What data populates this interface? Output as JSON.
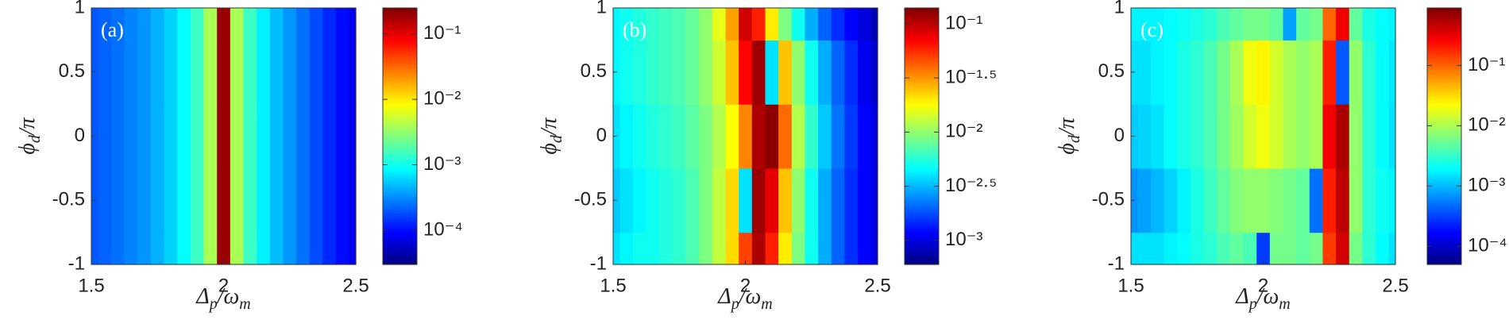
{
  "chart_data": [
    {
      "type": "heatmap",
      "panel_label": "(a)",
      "xlabel": [
        "Δ",
        "p",
        "/ω",
        "m"
      ],
      "ylabel": [
        "ϕ",
        "d",
        "/π"
      ],
      "x": [
        1.5,
        1.55,
        1.6,
        1.65,
        1.7,
        1.75,
        1.8,
        1.85,
        1.9,
        1.95,
        2,
        2.05,
        2.1,
        2.15,
        2.2,
        2.25,
        2.3,
        2.35,
        2.4,
        2.45,
        2.5
      ],
      "y": [
        -1,
        -0.5,
        0,
        0.5,
        1
      ],
      "z": [
        [
          0.0002,
          0.00022,
          0.00025,
          0.0003,
          0.00035,
          0.00045,
          0.0006,
          0.0009,
          0.0015,
          0.004,
          0.2,
          0.004,
          0.0015,
          0.0008,
          0.0005,
          0.00035,
          0.00025,
          0.00018,
          0.00013,
          0.0001,
          8e-05
        ],
        [
          0.0002,
          0.00022,
          0.00025,
          0.0003,
          0.00035,
          0.00045,
          0.0006,
          0.0009,
          0.0015,
          0.004,
          0.2,
          0.004,
          0.0015,
          0.0008,
          0.0005,
          0.00035,
          0.00025,
          0.00018,
          0.00013,
          0.0001,
          8e-05
        ],
        [
          0.0002,
          0.00022,
          0.00025,
          0.0003,
          0.00035,
          0.00045,
          0.0006,
          0.0009,
          0.0015,
          0.004,
          0.2,
          0.004,
          0.0015,
          0.0008,
          0.0005,
          0.00035,
          0.00025,
          0.00018,
          0.00013,
          0.0001,
          8e-05
        ],
        [
          0.0002,
          0.00022,
          0.00025,
          0.0003,
          0.00035,
          0.00045,
          0.0006,
          0.0009,
          0.0015,
          0.004,
          0.2,
          0.004,
          0.0015,
          0.0008,
          0.0005,
          0.00035,
          0.00025,
          0.00018,
          0.00013,
          0.0001,
          8e-05
        ],
        [
          0.0002,
          0.00022,
          0.00025,
          0.0003,
          0.00035,
          0.00045,
          0.0006,
          0.0009,
          0.0015,
          0.004,
          0.2,
          0.004,
          0.0015,
          0.0008,
          0.0005,
          0.00035,
          0.00025,
          0.00018,
          0.00013,
          0.0001,
          8e-05
        ]
      ],
      "xlim": [
        1.5,
        2.5
      ],
      "ylim": [
        -1,
        1
      ],
      "xticks": [
        1.5,
        2,
        2.5
      ],
      "yticks": [
        -1,
        -0.5,
        0,
        0.5,
        1
      ],
      "colorscale": "jet",
      "log_color": true,
      "clim": [
        3e-05,
        0.25
      ],
      "cticks": [
        {
          "value": 0.0001,
          "label": "10⁻⁴"
        },
        {
          "value": 0.001,
          "label": "10⁻³"
        },
        {
          "value": 0.01,
          "label": "10⁻²"
        },
        {
          "value": 0.1,
          "label": "10⁻¹"
        }
      ]
    },
    {
      "type": "heatmap",
      "panel_label": "(b)",
      "xlabel": [
        "Δ",
        "p",
        "/ω",
        "m"
      ],
      "ylabel": [
        "ϕ",
        "d",
        "/π"
      ],
      "x": [
        1.5,
        1.55,
        1.6,
        1.65,
        1.7,
        1.75,
        1.8,
        1.85,
        1.9,
        1.95,
        2,
        2.05,
        2.1,
        2.15,
        2.2,
        2.25,
        2.3,
        2.35,
        2.4,
        2.45,
        2.5
      ],
      "y": [
        -1,
        -0.5,
        0,
        0.5,
        1
      ],
      "z": [
        [
          0.004,
          0.0045,
          0.005,
          0.005,
          0.0055,
          0.006,
          0.007,
          0.009,
          0.013,
          0.022,
          0.05,
          0.11,
          0.06,
          0.02,
          0.009,
          0.005,
          0.003,
          0.002,
          0.0015,
          0.0012,
          0.001
        ],
        [
          0.0035,
          0.004,
          0.0045,
          0.005,
          0.0055,
          0.006,
          0.007,
          0.009,
          0.013,
          0.022,
          0.004,
          0.12,
          0.08,
          0.025,
          0.01,
          0.005,
          0.003,
          0.002,
          0.0015,
          0.0012,
          0.001
        ],
        [
          0.004,
          0.0045,
          0.005,
          0.0055,
          0.006,
          0.0065,
          0.0075,
          0.009,
          0.012,
          0.018,
          0.035,
          0.11,
          0.13,
          0.04,
          0.012,
          0.006,
          0.0035,
          0.0022,
          0.0016,
          0.0012,
          0.001
        ],
        [
          0.0045,
          0.005,
          0.0055,
          0.006,
          0.0065,
          0.007,
          0.008,
          0.01,
          0.014,
          0.025,
          0.07,
          0.12,
          0.004,
          0.025,
          0.01,
          0.005,
          0.003,
          0.002,
          0.0015,
          0.0011,
          0.0009
        ],
        [
          0.0045,
          0.005,
          0.0055,
          0.006,
          0.0065,
          0.007,
          0.008,
          0.01,
          0.016,
          0.03,
          0.09,
          0.06,
          0.02,
          0.009,
          0.005,
          0.003,
          0.002,
          0.0015,
          0.0012,
          0.001,
          0.0008
        ]
      ],
      "xlim": [
        1.5,
        2.5
      ],
      "ylim": [
        -1,
        1
      ],
      "xticks": [
        1.5,
        2,
        2.5
      ],
      "yticks": [
        -1,
        -0.5,
        0,
        0.5,
        1
      ],
      "colorscale": "jet",
      "log_color": true,
      "clim": [
        0.0006,
        0.14
      ],
      "cticks": [
        {
          "value": 0.001,
          "label": "10⁻³"
        },
        {
          "value": 0.00316,
          "label": "10⁻²·⁵"
        },
        {
          "value": 0.01,
          "label": "10⁻²"
        },
        {
          "value": 0.0316,
          "label": "10⁻¹·⁵"
        },
        {
          "value": 0.1,
          "label": "10⁻¹"
        }
      ]
    },
    {
      "type": "heatmap",
      "panel_label": "(c)",
      "xlabel": [
        "Δ",
        "p",
        "/ω",
        "m"
      ],
      "ylabel": [
        "ϕ",
        "d",
        "/π"
      ],
      "x": [
        1.5,
        1.55,
        1.6,
        1.65,
        1.7,
        1.75,
        1.8,
        1.85,
        1.9,
        1.95,
        2,
        2.05,
        2.1,
        2.15,
        2.2,
        2.25,
        2.3,
        2.35,
        2.4,
        2.45,
        2.5
      ],
      "y": [
        -1,
        -0.5,
        0,
        0.5,
        1
      ],
      "z": [
        [
          0.0015,
          0.0015,
          0.0015,
          0.0018,
          0.002,
          0.0025,
          0.003,
          0.004,
          0.005,
          0.004,
          0.0003,
          0.006,
          0.006,
          0.005,
          0.006,
          0.15,
          0.4,
          0.006,
          0.003,
          0.002,
          0.0015
        ],
        [
          0.0007,
          0.0008,
          0.001,
          0.0013,
          0.0018,
          0.0025,
          0.0035,
          0.005,
          0.007,
          0.008,
          0.008,
          0.007,
          0.006,
          0.005,
          0.0005,
          0.2,
          0.5,
          0.008,
          0.003,
          0.0022,
          0.0018
        ],
        [
          0.0012,
          0.0013,
          0.0015,
          0.002,
          0.0025,
          0.003,
          0.004,
          0.006,
          0.009,
          0.015,
          0.02,
          0.015,
          0.01,
          0.008,
          0.01,
          0.3,
          0.6,
          0.008,
          0.003,
          0.002,
          0.0015
        ],
        [
          0.0015,
          0.0015,
          0.0018,
          0.002,
          0.0025,
          0.003,
          0.004,
          0.006,
          0.01,
          0.02,
          0.025,
          0.015,
          0.01,
          0.008,
          0.01,
          0.2,
          0.0004,
          0.008,
          0.003,
          0.002,
          0.0016
        ],
        [
          0.0018,
          0.0018,
          0.0018,
          0.002,
          0.0022,
          0.0025,
          0.003,
          0.004,
          0.005,
          0.006,
          0.006,
          0.005,
          0.0008,
          0.005,
          0.006,
          0.1,
          0.3,
          0.005,
          0.0025,
          0.002,
          0.0018
        ]
      ],
      "xlim": [
        1.5,
        2.5
      ],
      "ylim": [
        -1,
        1
      ],
      "xticks": [
        1.5,
        2,
        2.5
      ],
      "yticks": [
        -1,
        -0.5,
        0,
        0.5,
        1
      ],
      "colorscale": "jet",
      "log_color": true,
      "clim": [
        5e-05,
        0.9
      ],
      "cticks": [
        {
          "value": 0.0001,
          "label": "10⁻⁴"
        },
        {
          "value": 0.001,
          "label": "10⁻³"
        },
        {
          "value": 0.01,
          "label": "10⁻²"
        },
        {
          "value": 0.1,
          "label": "10⁻¹"
        }
      ]
    }
  ]
}
